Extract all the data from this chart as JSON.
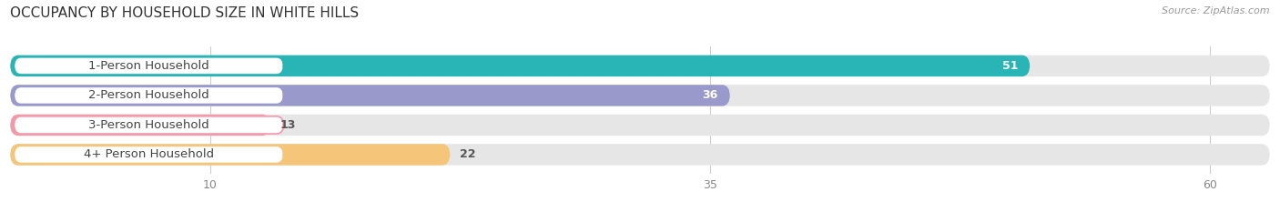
{
  "title": "OCCUPANCY BY HOUSEHOLD SIZE IN WHITE HILLS",
  "source": "Source: ZipAtlas.com",
  "categories": [
    "1-Person Household",
    "2-Person Household",
    "3-Person Household",
    "4+ Person Household"
  ],
  "values": [
    51,
    36,
    13,
    22
  ],
  "bar_colors": [
    "#29b5b5",
    "#9999cc",
    "#f499aa",
    "#f5c57a"
  ],
  "xlim": [
    0,
    63
  ],
  "xticks": [
    10,
    35,
    60
  ],
  "track_color": "#e6e6e6",
  "title_fontsize": 11,
  "label_fontsize": 9.5,
  "tick_fontsize": 9,
  "value_fontsize": 9
}
